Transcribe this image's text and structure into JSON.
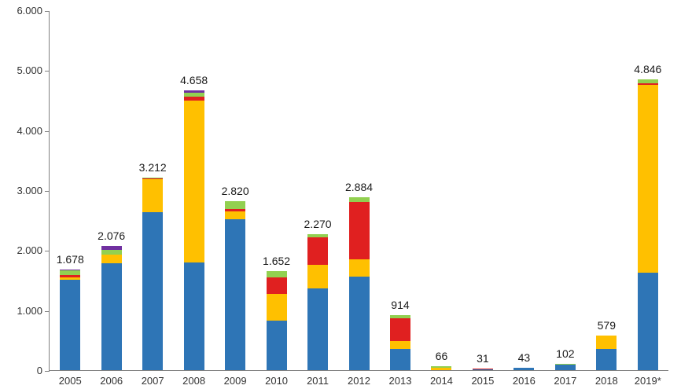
{
  "chart_data": {
    "type": "bar",
    "stacked": true,
    "title": "",
    "xlabel": "",
    "ylabel": "",
    "grid": false,
    "legend": false,
    "ylim": [
      0,
      6000
    ],
    "y_ticks": [
      "6.000",
      "5.000",
      "4.000",
      "3.000",
      "2.000",
      "1.000",
      "0"
    ],
    "categories": [
      "2005",
      "2006",
      "2007",
      "2008",
      "2009",
      "2010",
      "2011",
      "2012",
      "2013",
      "2014",
      "2015",
      "2016",
      "2017",
      "2018",
      "2019*"
    ],
    "totals": [
      1678,
      2076,
      3212,
      4658,
      2820,
      1652,
      2270,
      2884,
      914,
      66,
      31,
      43,
      102,
      579,
      4846
    ],
    "totals_labels": [
      "1.678",
      "2.076",
      "3.212",
      "4.658",
      "2.820",
      "1.652",
      "2.270",
      "2.884",
      "914",
      "66",
      "31",
      "43",
      "102",
      "579",
      "4.846"
    ],
    "series": [
      {
        "name": "blue",
        "color": "#2E75B6",
        "values": [
          1510,
          1780,
          2630,
          1790,
          2520,
          820,
          1360,
          1560,
          350,
          0,
          11,
          43,
          95,
          360,
          1620
        ]
      },
      {
        "name": "yellow",
        "color": "#FFC000",
        "values": [
          30,
          150,
          550,
          2710,
          130,
          450,
          400,
          290,
          130,
          40,
          0,
          0,
          0,
          219,
          3130
        ]
      },
      {
        "name": "red",
        "color": "#E02020",
        "values": [
          40,
          0,
          20,
          60,
          30,
          270,
          460,
          960,
          380,
          0,
          20,
          0,
          0,
          0,
          30
        ]
      },
      {
        "name": "green",
        "color": "#92D050",
        "values": [
          80,
          80,
          12,
          60,
          140,
          112,
          50,
          74,
          54,
          26,
          0,
          0,
          7,
          0,
          66
        ]
      },
      {
        "name": "purple",
        "color": "#7030A0",
        "values": [
          18,
          66,
          0,
          38,
          0,
          0,
          0,
          0,
          0,
          0,
          0,
          0,
          0,
          0,
          0
        ]
      }
    ],
    "colors": {
      "axis": "#808080",
      "value_label": "#1a1a1a",
      "tick_label": "#333333"
    }
  }
}
